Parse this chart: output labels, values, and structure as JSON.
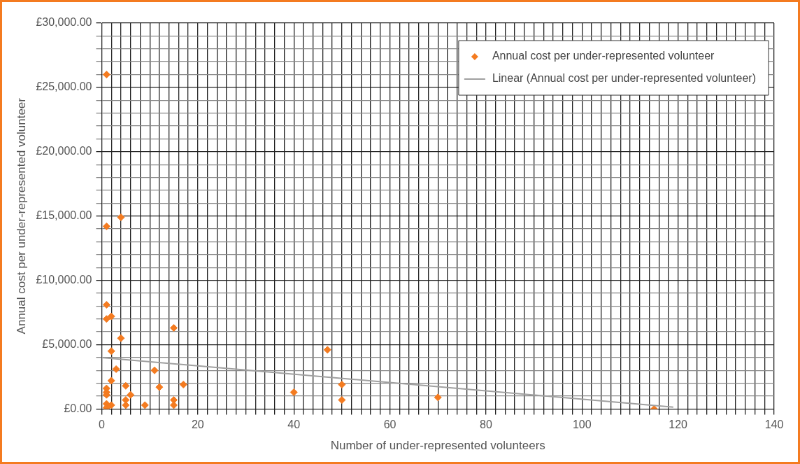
{
  "chart_data": {
    "type": "scatter",
    "xlabel": "Number of under-represented volunteers",
    "ylabel": "Annual cost per under-represented volunteer",
    "xlim": [
      0,
      140
    ],
    "ylim": [
      0,
      30000
    ],
    "xticks": [
      0,
      {
        "value": 2,
        "label": null
      },
      {
        "value": 4,
        "label": null
      },
      {
        "value": 6,
        "label": null
      },
      {
        "value": 8,
        "label": null
      },
      {
        "value": 10,
        "label": null
      },
      {
        "value": 12,
        "label": null
      },
      {
        "value": 14,
        "label": null
      },
      {
        "value": 16,
        "label": null
      },
      {
        "value": 18,
        "label": null
      },
      20,
      {
        "value": 22,
        "label": null
      },
      {
        "value": 24,
        "label": null
      },
      {
        "value": 26,
        "label": null
      },
      {
        "value": 28,
        "label": null
      },
      {
        "value": 30,
        "label": null
      },
      {
        "value": 32,
        "label": null
      },
      {
        "value": 34,
        "label": null
      },
      {
        "value": 36,
        "label": null
      },
      {
        "value": 38,
        "label": null
      },
      40,
      {
        "value": 42,
        "label": null
      },
      {
        "value": 44,
        "label": null
      },
      {
        "value": 46,
        "label": null
      },
      {
        "value": 48,
        "label": null
      },
      {
        "value": 50,
        "label": null
      },
      {
        "value": 52,
        "label": null
      },
      {
        "value": 54,
        "label": null
      },
      {
        "value": 56,
        "label": null
      },
      {
        "value": 58,
        "label": null
      },
      60,
      {
        "value": 62,
        "label": null
      },
      {
        "value": 64,
        "label": null
      },
      {
        "value": 66,
        "label": null
      },
      {
        "value": 68,
        "label": null
      },
      {
        "value": 70,
        "label": null
      },
      {
        "value": 72,
        "label": null
      },
      {
        "value": 74,
        "label": null
      },
      {
        "value": 76,
        "label": null
      },
      {
        "value": 78,
        "label": null
      },
      80,
      {
        "value": 82,
        "label": null
      },
      {
        "value": 84,
        "label": null
      },
      {
        "value": 86,
        "label": null
      },
      {
        "value": 88,
        "label": null
      },
      {
        "value": 90,
        "label": null
      },
      {
        "value": 92,
        "label": null
      },
      {
        "value": 94,
        "label": null
      },
      {
        "value": 96,
        "label": null
      },
      {
        "value": 98,
        "label": null
      },
      100,
      {
        "value": 102,
        "label": null
      },
      {
        "value": 104,
        "label": null
      },
      {
        "value": 106,
        "label": null
      },
      {
        "value": 108,
        "label": null
      },
      {
        "value": 110,
        "label": null
      },
      {
        "value": 112,
        "label": null
      },
      {
        "value": 114,
        "label": null
      },
      {
        "value": 116,
        "label": null
      },
      {
        "value": 118,
        "label": null
      },
      120,
      {
        "value": 122,
        "label": null
      },
      {
        "value": 124,
        "label": null
      },
      {
        "value": 126,
        "label": null
      },
      {
        "value": 128,
        "label": null
      },
      {
        "value": 130,
        "label": null
      },
      {
        "value": 132,
        "label": null
      },
      {
        "value": 134,
        "label": null
      },
      {
        "value": 136,
        "label": null
      },
      {
        "value": 138,
        "label": null
      },
      140
    ],
    "yticks": [
      {
        "value": 0,
        "label": "£0.00"
      },
      {
        "value": 1000,
        "label": null
      },
      {
        "value": 2000,
        "label": null
      },
      {
        "value": 3000,
        "label": null
      },
      {
        "value": 4000,
        "label": null
      },
      {
        "value": 5000,
        "label": "£5,000.00"
      },
      {
        "value": 6000,
        "label": null
      },
      {
        "value": 7000,
        "label": null
      },
      {
        "value": 8000,
        "label": null
      },
      {
        "value": 9000,
        "label": null
      },
      {
        "value": 10000,
        "label": "£10,000.00"
      },
      {
        "value": 11000,
        "label": null
      },
      {
        "value": 12000,
        "label": null
      },
      {
        "value": 13000,
        "label": null
      },
      {
        "value": 14000,
        "label": null
      },
      {
        "value": 15000,
        "label": "£15,000.00"
      },
      {
        "value": 16000,
        "label": null
      },
      {
        "value": 17000,
        "label": null
      },
      {
        "value": 18000,
        "label": null
      },
      {
        "value": 19000,
        "label": null
      },
      {
        "value": 20000,
        "label": "£20,000.00"
      },
      {
        "value": 21000,
        "label": null
      },
      {
        "value": 22000,
        "label": null
      },
      {
        "value": 23000,
        "label": null
      },
      {
        "value": 24000,
        "label": null
      },
      {
        "value": 25000,
        "label": "£25,000.00"
      },
      {
        "value": 26000,
        "label": null
      },
      {
        "value": 27000,
        "label": null
      },
      {
        "value": 28000,
        "label": null
      },
      {
        "value": 29000,
        "label": null
      },
      {
        "value": 30000,
        "label": "£30,000.00"
      }
    ],
    "grid": true,
    "legend": "top right",
    "marker": "diamond",
    "series": [
      {
        "name": "Annual cost per under-represented volunteer",
        "type": "scatter",
        "color": "#f47b20",
        "x": [
          1,
          1,
          4,
          1,
          1,
          2,
          4,
          15,
          2,
          47,
          3,
          11,
          5,
          12,
          17,
          2,
          1,
          1,
          1,
          6,
          5,
          5,
          9,
          15,
          15,
          1,
          1,
          2,
          40,
          50,
          50,
          70,
          115
        ],
        "values": [
          26000,
          14200,
          14900,
          8100,
          7000,
          7200,
          5500,
          6300,
          4500,
          4600,
          3100,
          3000,
          1800,
          1700,
          1900,
          2200,
          1600,
          1300,
          1100,
          1100,
          700,
          300,
          300,
          700,
          300,
          400,
          100,
          300,
          1300,
          1900,
          700,
          900,
          0
        ]
      },
      {
        "name": "Linear (Annual cost per under-represented volunteer)",
        "type": "line",
        "color": "#a0a0a0",
        "marker": "none",
        "x": [
          0,
          119
        ],
        "values": [
          4000,
          150
        ]
      }
    ]
  }
}
